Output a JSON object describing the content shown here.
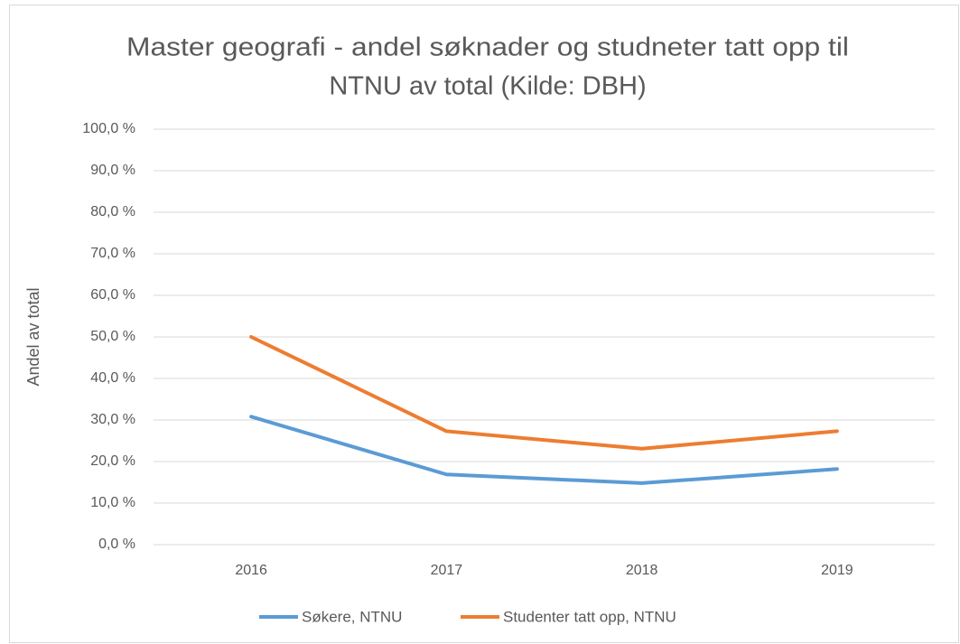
{
  "chart_data": {
    "type": "line",
    "title": [
      "Master geografi - andel søknader og studneter tatt opp til",
      "NTNU av total (Kilde: DBH)"
    ],
    "y_label": "Andel av total",
    "categories": [
      "2016",
      "2017",
      "2018",
      "2019"
    ],
    "series": [
      {
        "name": "Søkere, NTNU",
        "color": "#5b9bd5",
        "values": [
          30.8,
          16.9,
          14.8,
          18.2
        ]
      },
      {
        "name": "Studenter tatt opp, NTNU",
        "color": "#ed7d31",
        "values": [
          50.0,
          27.3,
          23.1,
          27.3
        ]
      }
    ],
    "ylim": [
      0,
      100
    ],
    "yticks": [
      {
        "value": 0,
        "label": "0,0 %"
      },
      {
        "value": 10,
        "label": "10,0 %"
      },
      {
        "value": 20,
        "label": "20,0 %"
      },
      {
        "value": 30,
        "label": "30,0 %"
      },
      {
        "value": 40,
        "label": "40,0 %"
      },
      {
        "value": 50,
        "label": "50,0 %"
      },
      {
        "value": 60,
        "label": "60,0 %"
      },
      {
        "value": 70,
        "label": "70,0 %"
      },
      {
        "value": 80,
        "label": "80,0 %"
      },
      {
        "value": 90,
        "label": "90,0 %"
      },
      {
        "value": 100,
        "label": "100,0 %"
      }
    ],
    "grid": true,
    "legend": "bottom"
  }
}
